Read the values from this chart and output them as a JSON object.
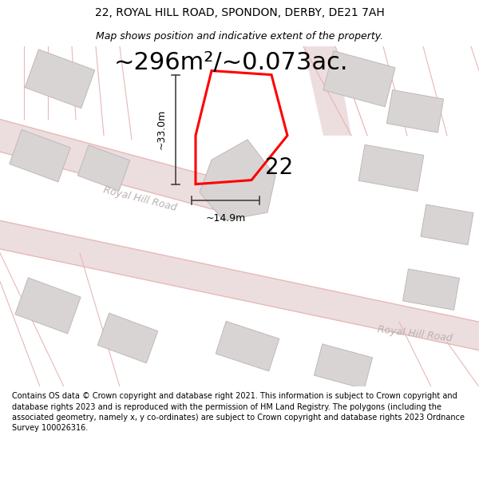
{
  "title_line1": "22, ROYAL HILL ROAD, SPONDON, DERBY, DE21 7AH",
  "title_line2": "Map shows position and indicative extent of the property.",
  "area_text": "~296m²/~0.073ac.",
  "property_number": "22",
  "dim_vertical": "~33.0m",
  "dim_horizontal": "~14.9m",
  "road_label1": "Royal Hill Road",
  "road_label2": "Royal Hill Road",
  "footer": "Contains OS data © Crown copyright and database right 2021. This information is subject to Crown copyright and database rights 2023 and is reproduced with the permission of HM Land Registry. The polygons (including the associated geometry, namely x, y co-ordinates) are subject to Crown copyright and database rights 2023 Ordnance Survey 100026316.",
  "bg_color": "#f7f4f4",
  "road_fill_color": "#ecdede",
  "building_color": "#d9d4d4",
  "building_edge": "#c0b8b8",
  "prop_color": "red",
  "prop_lw": 2.2,
  "dim_color": "#444444",
  "road_text_color": "#bbb0b0",
  "thin_road_color": "#e8b8b8",
  "figsize": [
    6.0,
    6.25
  ],
  "dpi": 100,
  "title_fontsize": 10,
  "subtitle_fontsize": 9,
  "area_fontsize": 22,
  "num_fontsize": 20,
  "dim_fontsize": 9,
  "road_fontsize": 9,
  "footer_fontsize": 7
}
